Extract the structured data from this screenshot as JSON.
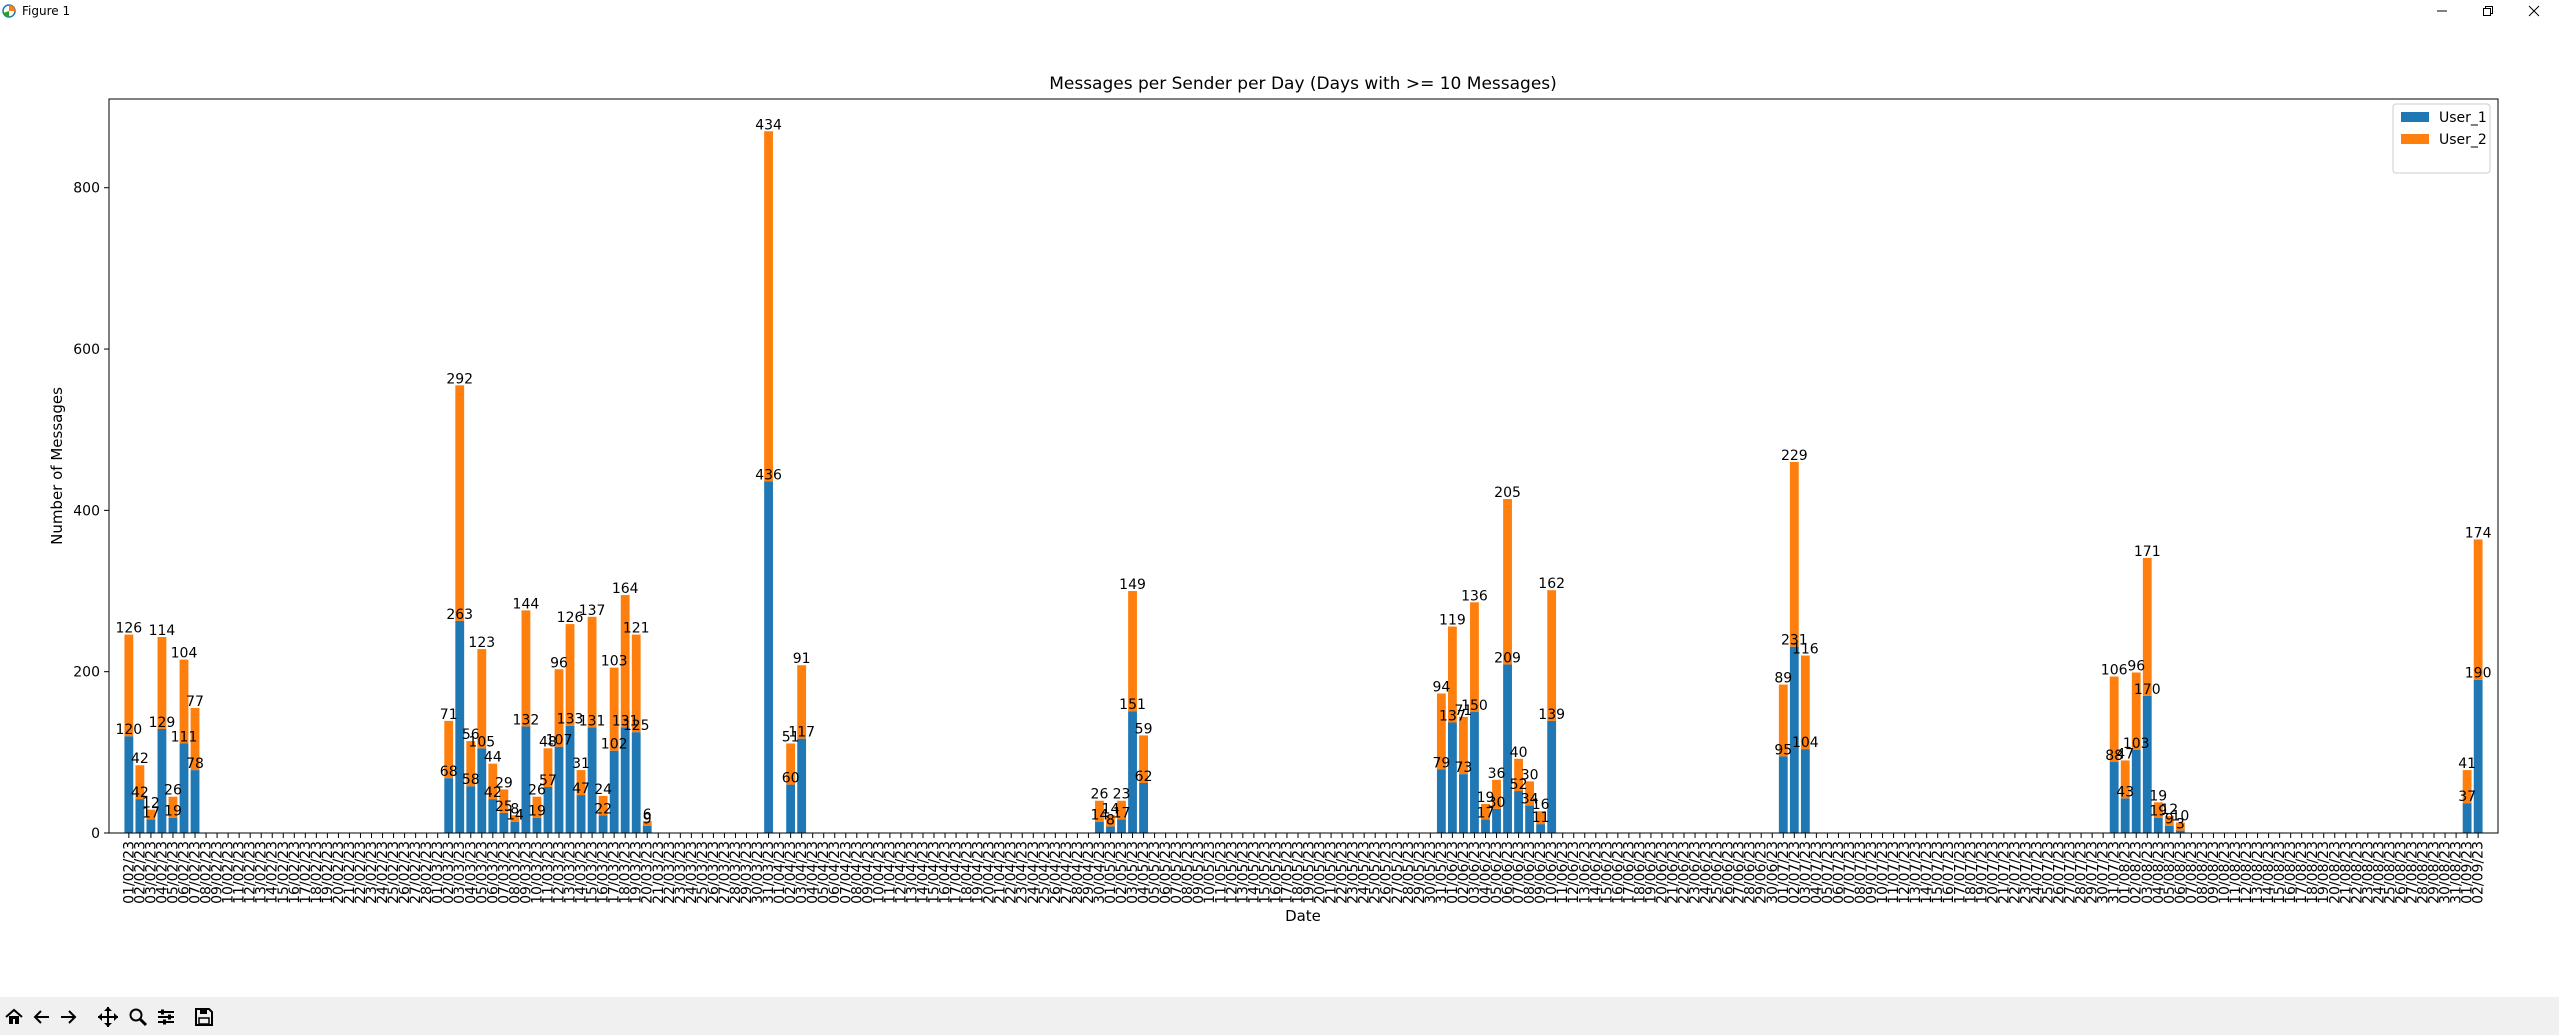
{
  "window": {
    "title": "Figure 1",
    "icons": [
      "figure-app-icon",
      "minimize-icon",
      "restore-icon",
      "close-icon"
    ]
  },
  "toolbar": {
    "icons": [
      "home-icon",
      "back-arrow-icon",
      "forward-arrow-icon",
      "pan-move-icon",
      "zoom-magnifier-icon",
      "configure-subplots-icon",
      "save-disk-icon"
    ]
  },
  "chart_data": {
    "type": "bar",
    "stacked": true,
    "title": "Messages per Sender per Day (Days with >= 10 Messages)",
    "xlabel": "Date",
    "ylabel": "Number of Messages",
    "ylim": [
      0,
      910
    ],
    "yticks": [
      0,
      200,
      400,
      600,
      800
    ],
    "grid": false,
    "legend_position": "top-right",
    "date_range": [
      "01/02/23",
      "02/09/23"
    ],
    "x_tick_labels_rotated": 90,
    "series": [
      {
        "name": "User_1",
        "color": "#1f77b4"
      },
      {
        "name": "User_2",
        "color": "#ff7f0e"
      }
    ],
    "bars": [
      {
        "date": "01/02/23",
        "User_1": 120,
        "User_2": 126
      },
      {
        "date": "02/02/23",
        "User_1": 42,
        "User_2": 42
      },
      {
        "date": "03/02/23",
        "User_1": 17,
        "User_2": 12
      },
      {
        "date": "04/02/23",
        "User_1": 129,
        "User_2": 114
      },
      {
        "date": "05/02/23",
        "User_1": 19,
        "User_2": 26
      },
      {
        "date": "06/02/23",
        "User_1": 111,
        "User_2": 104
      },
      {
        "date": "07/02/23",
        "User_1": 78,
        "User_2": 77
      },
      {
        "date": "02/03/23",
        "User_1": 68,
        "User_2": 71
      },
      {
        "date": "03/03/23",
        "User_1": 263,
        "User_2": 292
      },
      {
        "date": "04/03/23",
        "User_1": 58,
        "User_2": 56
      },
      {
        "date": "05/03/23",
        "User_1": 105,
        "User_2": 123
      },
      {
        "date": "06/03/23",
        "User_1": 42,
        "User_2": 44
      },
      {
        "date": "07/03/23",
        "User_1": 25,
        "User_2": 29
      },
      {
        "date": "08/03/23",
        "User_1": 14,
        "User_2": 8
      },
      {
        "date": "09/03/23",
        "User_1": 132,
        "User_2": 144
      },
      {
        "date": "10/03/23",
        "User_1": 19,
        "User_2": 26
      },
      {
        "date": "11/03/23",
        "User_1": 57,
        "User_2": 48
      },
      {
        "date": "12/03/23",
        "User_1": 107,
        "User_2": 96
      },
      {
        "date": "13/03/23",
        "User_1": 133,
        "User_2": 126
      },
      {
        "date": "14/03/23",
        "User_1": 47,
        "User_2": 31
      },
      {
        "date": "15/03/23",
        "User_1": 131,
        "User_2": 137
      },
      {
        "date": "16/03/23",
        "User_1": 22,
        "User_2": 24
      },
      {
        "date": "17/03/23",
        "User_1": 102,
        "User_2": 103
      },
      {
        "date": "18/03/23",
        "User_1": 131,
        "User_2": 164
      },
      {
        "date": "19/03/23",
        "User_1": 125,
        "User_2": 121
      },
      {
        "date": "20/03/23",
        "User_1": 9,
        "User_2": 6
      },
      {
        "date": "31/03/23",
        "User_1": 436,
        "User_2": 434
      },
      {
        "date": "02/04/23",
        "User_1": 60,
        "User_2": 51
      },
      {
        "date": "03/04/23",
        "User_1": 117,
        "User_2": 91
      },
      {
        "date": "30/04/23",
        "User_1": 14,
        "User_2": 26
      },
      {
        "date": "01/05/23",
        "User_1": 8,
        "User_2": 14
      },
      {
        "date": "02/05/23",
        "User_1": 17,
        "User_2": 23
      },
      {
        "date": "03/05/23",
        "User_1": 151,
        "User_2": 149
      },
      {
        "date": "04/05/23",
        "User_1": 62,
        "User_2": 59
      },
      {
        "date": "31/05/23",
        "User_1": 79,
        "User_2": 94
      },
      {
        "date": "01/06/23",
        "User_1": 137,
        "User_2": 119
      },
      {
        "date": "02/06/23",
        "User_1": 73,
        "User_2": 71
      },
      {
        "date": "03/06/23",
        "User_1": 150,
        "User_2": 136
      },
      {
        "date": "04/06/23",
        "User_1": 17,
        "User_2": 19
      },
      {
        "date": "05/06/23",
        "User_1": 30,
        "User_2": 36
      },
      {
        "date": "06/06/23",
        "User_1": 209,
        "User_2": 205
      },
      {
        "date": "07/06/23",
        "User_1": 52,
        "User_2": 40
      },
      {
        "date": "08/06/23",
        "User_1": 34,
        "User_2": 30
      },
      {
        "date": "09/06/23",
        "User_1": 11,
        "User_2": 16
      },
      {
        "date": "10/06/23",
        "User_1": 139,
        "User_2": 162
      },
      {
        "date": "01/07/23",
        "User_1": 95,
        "User_2": 89
      },
      {
        "date": "02/07/23",
        "User_1": 231,
        "User_2": 229
      },
      {
        "date": "03/07/23",
        "User_1": 104,
        "User_2": 116
      },
      {
        "date": "31/07/23",
        "User_1": 88,
        "User_2": 106
      },
      {
        "date": "01/08/23",
        "User_1": 43,
        "User_2": 47
      },
      {
        "date": "02/08/23",
        "User_1": 103,
        "User_2": 96
      },
      {
        "date": "03/08/23",
        "User_1": 170,
        "User_2": 171
      },
      {
        "date": "04/08/23",
        "User_1": 19,
        "User_2": 19
      },
      {
        "date": "05/08/23",
        "User_1": 9,
        "User_2": 12
      },
      {
        "date": "06/08/23",
        "User_1": 3,
        "User_2": 10
      },
      {
        "date": "01/09/23",
        "User_1": 37,
        "User_2": 41
      },
      {
        "date": "02/09/23",
        "User_1": 190,
        "User_2": 174
      }
    ]
  }
}
